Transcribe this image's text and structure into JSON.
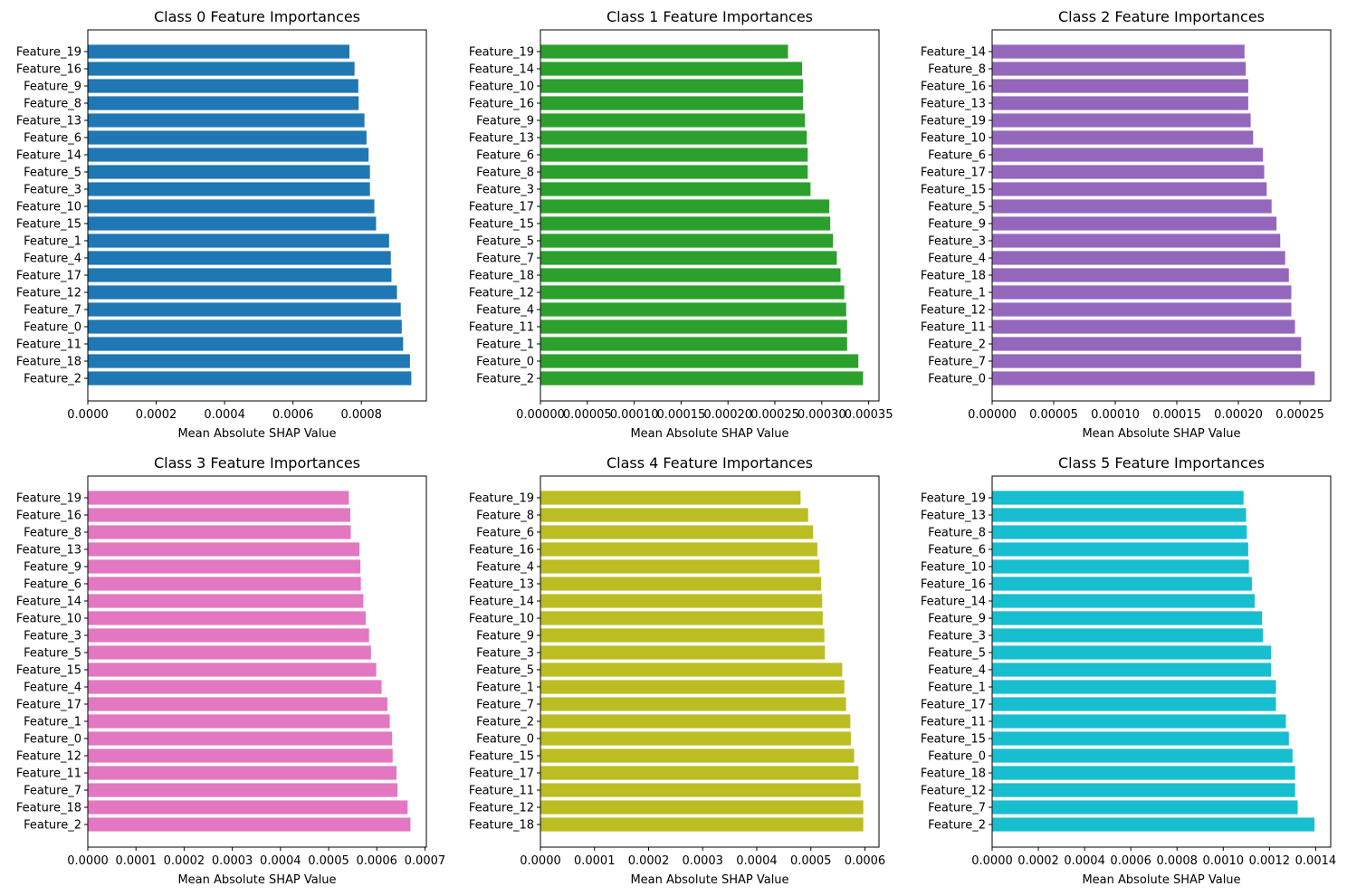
{
  "chart_data": [
    {
      "type": "bar",
      "orientation": "horizontal",
      "title": "Class 0 Feature Importances",
      "xlabel": "Mean Absolute SHAP Value",
      "ylabel": "",
      "color": "#1f77b4",
      "xlim": [
        0,
        0.00099
      ],
      "xticks": [
        0.0,
        0.0002,
        0.0004,
        0.0006,
        0.0008
      ],
      "xtick_labels": [
        "0.0000",
        "0.0002",
        "0.0004",
        "0.0006",
        "0.0008"
      ],
      "categories": [
        "Feature_2",
        "Feature_18",
        "Feature_11",
        "Feature_0",
        "Feature_7",
        "Feature_12",
        "Feature_17",
        "Feature_4",
        "Feature_1",
        "Feature_15",
        "Feature_10",
        "Feature_3",
        "Feature_5",
        "Feature_14",
        "Feature_6",
        "Feature_13",
        "Feature_8",
        "Feature_9",
        "Feature_16",
        "Feature_19"
      ],
      "values": [
        0.000946,
        0.000942,
        0.000922,
        0.000918,
        0.000915,
        0.000904,
        0.000888,
        0.000886,
        0.000881,
        0.000843,
        0.000838,
        0.000825,
        0.000825,
        0.000821,
        0.000815,
        0.000809,
        0.000792,
        0.000791,
        0.00078,
        0.000765
      ]
    },
    {
      "type": "bar",
      "orientation": "horizontal",
      "title": "Class 1 Feature Importances",
      "xlabel": "Mean Absolute SHAP Value",
      "ylabel": "",
      "color": "#2ca02c",
      "xlim": [
        0,
        0.000361
      ],
      "xticks": [
        0.0,
        5e-05,
        0.0001,
        0.00015,
        0.0002,
        0.00025,
        0.0003,
        0.00035
      ],
      "xtick_labels": [
        "0.00000",
        "0.00005",
        "0.00010",
        "0.00015",
        "0.00020",
        "0.00025",
        "0.00030",
        "0.00035"
      ],
      "categories": [
        "Feature_2",
        "Feature_0",
        "Feature_1",
        "Feature_11",
        "Feature_4",
        "Feature_12",
        "Feature_18",
        "Feature_7",
        "Feature_5",
        "Feature_15",
        "Feature_17",
        "Feature_3",
        "Feature_8",
        "Feature_6",
        "Feature_13",
        "Feature_9",
        "Feature_16",
        "Feature_10",
        "Feature_14",
        "Feature_19"
      ],
      "values": [
        0.000344,
        0.000339,
        0.000327,
        0.000327,
        0.000326,
        0.000324,
        0.00032,
        0.000316,
        0.000312,
        0.000309,
        0.000308,
        0.000288,
        0.000285,
        0.000285,
        0.000284,
        0.000282,
        0.00028,
        0.00028,
        0.000279,
        0.000264
      ]
    },
    {
      "type": "bar",
      "orientation": "horizontal",
      "title": "Class 2 Feature Importances",
      "xlabel": "Mean Absolute SHAP Value",
      "ylabel": "",
      "color": "#9467bd",
      "xlim": [
        0,
        0.000275
      ],
      "xticks": [
        0.0,
        5e-05,
        0.0001,
        0.00015,
        0.0002,
        0.00025
      ],
      "xtick_labels": [
        "0.00000",
        "0.00005",
        "0.00010",
        "0.00015",
        "0.00020",
        "0.00025"
      ],
      "categories": [
        "Feature_0",
        "Feature_7",
        "Feature_2",
        "Feature_11",
        "Feature_12",
        "Feature_1",
        "Feature_18",
        "Feature_4",
        "Feature_3",
        "Feature_9",
        "Feature_5",
        "Feature_15",
        "Feature_17",
        "Feature_6",
        "Feature_10",
        "Feature_19",
        "Feature_13",
        "Feature_16",
        "Feature_8",
        "Feature_14"
      ],
      "values": [
        0.000262,
        0.000251,
        0.000251,
        0.000246,
        0.000243,
        0.000243,
        0.000241,
        0.000238,
        0.000234,
        0.000231,
        0.000227,
        0.000223,
        0.000221,
        0.00022,
        0.000212,
        0.00021,
        0.000208,
        0.000208,
        0.000206,
        0.000205
      ]
    },
    {
      "type": "bar",
      "orientation": "horizontal",
      "title": "Class 3 Feature Importances",
      "xlabel": "Mean Absolute SHAP Value",
      "ylabel": "",
      "color": "#e377c2",
      "xlim": [
        0,
        0.000703
      ],
      "xticks": [
        0.0,
        0.0001,
        0.0002,
        0.0003,
        0.0004,
        0.0005,
        0.0006,
        0.0007
      ],
      "xtick_labels": [
        "0.0000",
        "0.0001",
        "0.0002",
        "0.0003",
        "0.0004",
        "0.0005",
        "0.0006",
        "0.0007"
      ],
      "categories": [
        "Feature_2",
        "Feature_18",
        "Feature_7",
        "Feature_11",
        "Feature_12",
        "Feature_0",
        "Feature_1",
        "Feature_17",
        "Feature_4",
        "Feature_15",
        "Feature_5",
        "Feature_3",
        "Feature_10",
        "Feature_14",
        "Feature_6",
        "Feature_9",
        "Feature_13",
        "Feature_8",
        "Feature_16",
        "Feature_19"
      ],
      "values": [
        0.00067,
        0.000664,
        0.000643,
        0.000641,
        0.000633,
        0.000632,
        0.000627,
        0.000622,
        0.00061,
        0.000599,
        0.000588,
        0.000584,
        0.000577,
        0.000572,
        0.000567,
        0.000566,
        0.000564,
        0.000546,
        0.000545,
        0.000542
      ]
    },
    {
      "type": "bar",
      "orientation": "horizontal",
      "title": "Class 4 Feature Importances",
      "xlabel": "Mean Absolute SHAP Value",
      "ylabel": "",
      "color": "#bcbd22",
      "xlim": [
        0,
        0.000626
      ],
      "xticks": [
        0.0,
        0.0001,
        0.0002,
        0.0003,
        0.0004,
        0.0005,
        0.0006
      ],
      "xtick_labels": [
        "0.0000",
        "0.0001",
        "0.0002",
        "0.0003",
        "0.0004",
        "0.0005",
        "0.0006"
      ],
      "categories": [
        "Feature_18",
        "Feature_12",
        "Feature_11",
        "Feature_17",
        "Feature_15",
        "Feature_0",
        "Feature_2",
        "Feature_7",
        "Feature_1",
        "Feature_5",
        "Feature_3",
        "Feature_9",
        "Feature_10",
        "Feature_14",
        "Feature_13",
        "Feature_4",
        "Feature_16",
        "Feature_6",
        "Feature_8",
        "Feature_19"
      ],
      "values": [
        0.000597,
        0.000597,
        0.000592,
        0.000588,
        0.00058,
        0.000574,
        0.000573,
        0.000565,
        0.000562,
        0.000558,
        0.000526,
        0.000525,
        0.000522,
        0.000521,
        0.000519,
        0.000516,
        0.000512,
        0.000504,
        0.000495,
        0.000481
      ]
    },
    {
      "type": "bar",
      "orientation": "horizontal",
      "title": "Class 5 Feature Importances",
      "xlabel": "Mean Absolute SHAP Value",
      "ylabel": "",
      "color": "#17becf",
      "xlim": [
        0,
        0.001465
      ],
      "xticks": [
        0.0,
        0.0002,
        0.0004,
        0.0006,
        0.0008,
        0.001,
        0.0012,
        0.0014
      ],
      "xtick_labels": [
        "0.0000",
        "0.0002",
        "0.0004",
        "0.0006",
        "0.0008",
        "0.0010",
        "0.0012",
        "0.0014"
      ],
      "categories": [
        "Feature_2",
        "Feature_7",
        "Feature_12",
        "Feature_18",
        "Feature_0",
        "Feature_15",
        "Feature_11",
        "Feature_17",
        "Feature_1",
        "Feature_4",
        "Feature_5",
        "Feature_3",
        "Feature_9",
        "Feature_14",
        "Feature_16",
        "Feature_10",
        "Feature_6",
        "Feature_8",
        "Feature_13",
        "Feature_19"
      ],
      "values": [
        0.001395,
        0.001322,
        0.001311,
        0.001311,
        0.0013,
        0.001284,
        0.001271,
        0.001228,
        0.001228,
        0.001207,
        0.001207,
        0.001172,
        0.001168,
        0.001136,
        0.001124,
        0.001111,
        0.001108,
        0.001102,
        0.001099,
        0.001088
      ]
    }
  ]
}
